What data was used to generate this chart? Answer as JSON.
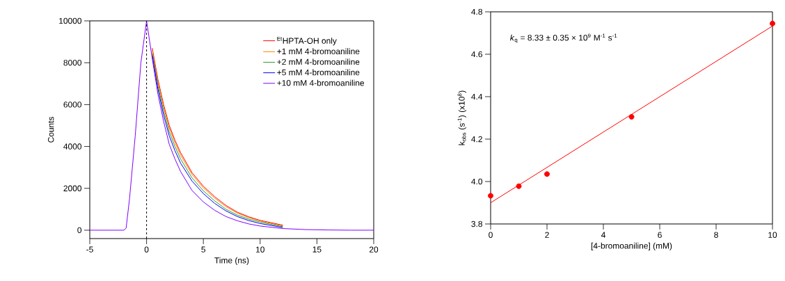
{
  "chart_data": [
    {
      "type": "line",
      "xlabel": "Time (ns)",
      "ylabel": "Counts",
      "x": [
        -5,
        -2,
        -1.8,
        -1.5,
        -1,
        -0.5,
        0,
        0.5,
        1,
        1.5,
        2,
        2.5,
        3,
        4,
        5,
        6,
        7,
        8,
        9,
        10,
        12,
        14,
        16,
        18,
        20
      ],
      "series": [
        {
          "name": "$^{Et}$HPTA-OH only",
          "color": "#ff0000",
          "values": [
            null,
            null,
            null,
            null,
            null,
            null,
            null,
            8700,
            7200,
            6000,
            5000,
            4300,
            3700,
            2750,
            2100,
            1600,
            1180,
            860,
            640,
            470,
            240,
            null,
            null,
            null,
            null
          ]
        },
        {
          "name": "+1 mM 4-bromoaniline",
          "color": "#ff8000",
          "values": [
            null,
            null,
            null,
            null,
            null,
            null,
            null,
            8600,
            7080,
            5880,
            4880,
            4180,
            3580,
            2660,
            2020,
            1530,
            1120,
            810,
            600,
            440,
            200,
            null,
            null,
            null,
            null
          ]
        },
        {
          "name": "+2 mM 4-bromoaniline",
          "color": "#2ca02c",
          "values": [
            null,
            null,
            null,
            null,
            null,
            null,
            null,
            8450,
            6900,
            5700,
            4700,
            4000,
            3400,
            2500,
            1880,
            1400,
            1000,
            720,
            530,
            390,
            170,
            null,
            null,
            null,
            null
          ]
        },
        {
          "name": "+5 mM 4-bromoaniline",
          "color": "#0000ff",
          "values": [
            null,
            null,
            null,
            null,
            null,
            null,
            null,
            8350,
            6750,
            5500,
            4500,
            3800,
            3200,
            2350,
            1750,
            1280,
            920,
            650,
            460,
            320,
            130,
            null,
            null,
            null,
            null
          ]
        },
        {
          "name": "+10 mM 4-bromoaniline",
          "color": "#8000ff",
          "values": [
            0,
            0,
            100,
            1500,
            4500,
            8000,
            10000,
            8200,
            6500,
            5200,
            4100,
            3400,
            2800,
            1900,
            1350,
            950,
            650,
            450,
            300,
            200,
            80,
            30,
            10,
            0,
            0
          ]
        }
      ],
      "xlim": [
        -5,
        20
      ],
      "xticks": [
        -5,
        0,
        5,
        10,
        15,
        20
      ],
      "ylim": [
        -400,
        10000
      ],
      "yticks": [
        0,
        2000,
        4000,
        6000,
        8000,
        10000
      ],
      "legend": "top right",
      "ref_lines": [
        {
          "axis": "x",
          "value": 0,
          "color": "#000000",
          "line_style": "dashed"
        }
      ]
    },
    {
      "type": "scatter",
      "xlabel": "[4-bromoaniline] (mM)",
      "ylabel": "k$_{obs}$ (s$^{-1}$) (x10$^{8}$)",
      "annotations": [
        "*k*$_{q}$ = 8.33 ± 0.35 × 10$^{9}$ M$^{-1}$ s$^{-1}$"
      ],
      "x": [
        0,
        1,
        2,
        5,
        10
      ],
      "series": [
        {
          "color": "#ff0000",
          "values": [
            3.933,
            3.978,
            4.035,
            4.305,
            4.745
          ]
        },
        {
          "type": "line",
          "color": "#ff0000",
          "x": [
            0,
            10
          ],
          "values": [
            3.9,
            4.733
          ]
        }
      ],
      "xlim": [
        0,
        10
      ],
      "xticks": [
        0,
        2,
        4,
        6,
        8,
        10
      ],
      "ylim": [
        3.8,
        4.8
      ],
      "yticks": [
        3.8,
        {
          "value": 4,
          "label": "4.0"
        },
        4.2,
        4.4,
        4.6,
        4.8
      ]
    }
  ]
}
